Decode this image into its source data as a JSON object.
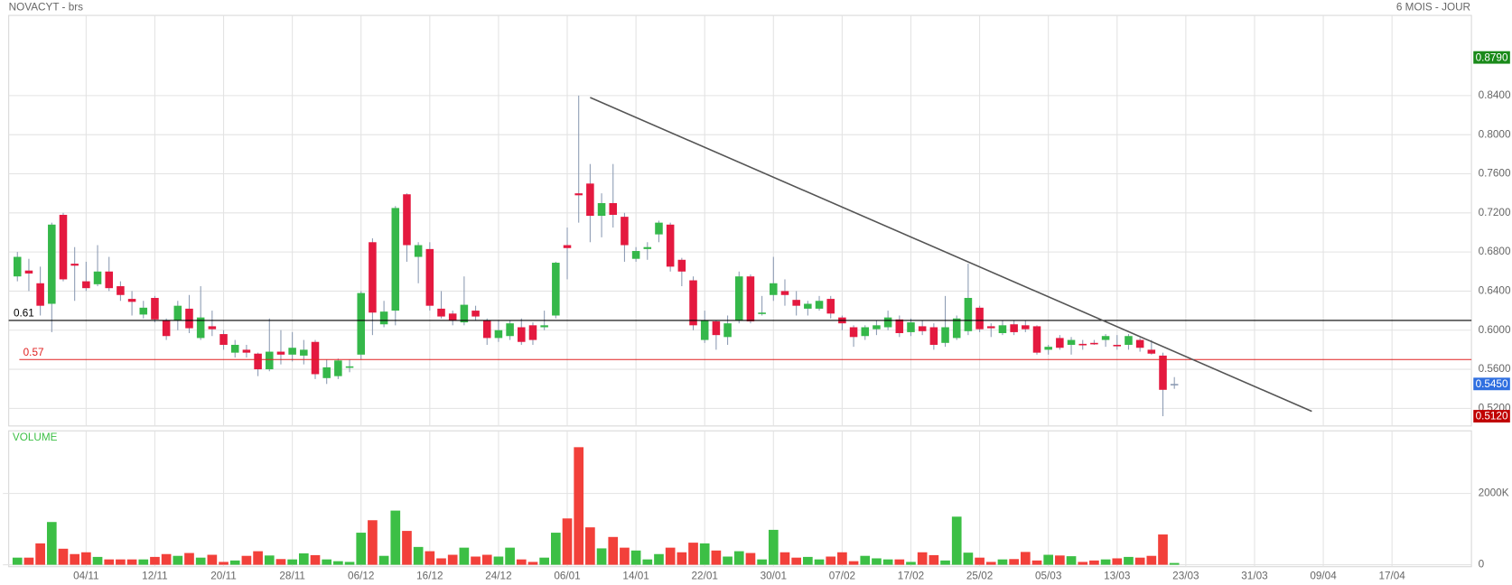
{
  "chart_data": {
    "type": "candlestick",
    "title": "NOVACYT - brs",
    "subtitle": "6 MOIS - JOUR",
    "volume_label": "VOLUME",
    "categories": [
      null,
      null,
      null,
      null,
      null,
      null,
      "04/11",
      null,
      null,
      null,
      null,
      null,
      "12/11",
      null,
      null,
      null,
      null,
      null,
      "20/11",
      null,
      null,
      null,
      null,
      null,
      "28/11",
      null,
      null,
      null,
      null,
      null,
      "06/12",
      null,
      null,
      null,
      null,
      null,
      "16/12",
      null,
      null,
      null,
      null,
      null,
      "24/12",
      null,
      null,
      null,
      null,
      null,
      "06/01",
      null,
      null,
      null,
      null,
      null,
      "14/01",
      null,
      null,
      null,
      null,
      null,
      "22/01",
      null,
      null,
      null,
      null,
      null,
      "30/01",
      null,
      null,
      null,
      null,
      null,
      "07/02",
      null,
      null,
      null,
      null,
      null,
      "17/02",
      null,
      null,
      null,
      null,
      null,
      "25/02",
      null,
      null,
      null,
      null,
      null,
      "05/03",
      null,
      null,
      null,
      null,
      null,
      "13/03",
      null,
      null,
      null,
      null,
      null,
      "23/03",
      null,
      null,
      null,
      null,
      null,
      "31/03",
      null,
      null,
      null,
      null,
      null,
      "09/04",
      null,
      null,
      null,
      null,
      null,
      "17/04"
    ],
    "open": [
      0.655,
      0.661,
      0.648,
      0.627,
      0.718,
      0.668,
      0.65,
      0.647,
      0.66,
      0.645,
      0.632,
      0.616,
      0.633,
      0.61,
      0.61,
      0.622,
      0.592,
      0.604,
      0.596,
      0.577,
      0.58,
      0.576,
      0.56,
      0.578,
      0.575,
      0.574,
      0.588,
      0.551,
      0.553,
      0.562,
      0.575,
      0.69,
      0.606,
      0.62,
      0.739,
      0.675,
      0.683,
      0.622,
      0.617,
      0.608,
      0.62,
      0.61,
      0.592,
      0.594,
      0.603,
      0.605,
      0.603,
      0.615,
      0.687,
      0.74,
      0.75,
      0.717,
      0.73,
      0.716,
      0.673,
      0.683,
      0.698,
      0.708,
      0.672,
      0.651,
      0.59,
      0.609,
      0.593,
      0.61,
      0.655,
      0.617,
      0.636,
      0.64,
      0.631,
      0.622,
      0.622,
      0.632,
      0.613,
      0.603,
      0.594,
      0.601,
      0.603,
      0.611,
      0.598,
      0.604,
      0.603,
      0.587,
      0.592,
      0.599,
      0.623,
      0.604,
      0.597,
      0.606,
      0.605,
      0.604,
      0.58,
      0.592,
      0.585,
      0.586,
      0.587,
      0.59,
      0.585,
      0.585,
      0.59,
      0.58,
      0.574,
      0.545,
      null,
      null,
      null,
      null,
      null,
      null,
      null,
      null,
      null,
      null,
      null,
      null,
      null,
      null,
      null,
      null,
      null,
      null,
      null
    ],
    "high": [
      0.68,
      0.673,
      0.665,
      0.71,
      0.72,
      0.685,
      0.67,
      0.687,
      0.675,
      0.65,
      0.64,
      0.63,
      0.635,
      0.612,
      0.63,
      0.636,
      0.645,
      0.62,
      0.6,
      0.59,
      0.585,
      0.577,
      0.612,
      0.6,
      0.598,
      0.59,
      0.59,
      0.57,
      0.571,
      0.57,
      0.64,
      0.694,
      0.63,
      0.727,
      0.74,
      0.69,
      0.69,
      0.64,
      0.62,
      0.655,
      0.625,
      0.612,
      0.61,
      0.61,
      0.612,
      0.608,
      0.62,
      0.67,
      0.705,
      0.84,
      0.77,
      0.74,
      0.77,
      0.72,
      0.685,
      0.69,
      0.712,
      0.71,
      0.674,
      0.655,
      0.62,
      0.61,
      0.615,
      0.66,
      0.657,
      0.635,
      0.675,
      0.652,
      0.64,
      0.63,
      0.635,
      0.635,
      0.615,
      0.605,
      0.605,
      0.61,
      0.62,
      0.615,
      0.612,
      0.61,
      0.607,
      0.635,
      0.615,
      0.668,
      0.625,
      0.607,
      0.61,
      0.61,
      0.61,
      0.605,
      0.585,
      0.595,
      0.593,
      0.59,
      0.59,
      0.596,
      0.595,
      0.596,
      0.592,
      0.59,
      0.577,
      0.552,
      null,
      null,
      null,
      null,
      null,
      null,
      null,
      null,
      null,
      null,
      null,
      null,
      null,
      null,
      null,
      null,
      null,
      null,
      null
    ],
    "low": [
      0.65,
      0.64,
      0.615,
      0.598,
      0.65,
      0.63,
      0.64,
      0.645,
      0.64,
      0.63,
      0.615,
      0.612,
      0.608,
      0.59,
      0.6,
      0.597,
      0.59,
      0.594,
      0.58,
      0.572,
      0.572,
      0.553,
      0.558,
      0.565,
      0.568,
      0.565,
      0.55,
      0.545,
      0.55,
      0.557,
      0.57,
      0.595,
      0.603,
      0.605,
      0.67,
      0.648,
      0.62,
      0.612,
      0.605,
      0.605,
      0.61,
      0.585,
      0.588,
      0.59,
      0.585,
      0.585,
      0.6,
      0.612,
      0.652,
      0.71,
      0.69,
      0.695,
      0.705,
      0.67,
      0.67,
      0.672,
      0.69,
      0.66,
      0.645,
      0.6,
      0.587,
      0.58,
      0.585,
      0.607,
      0.607,
      0.615,
      0.63,
      0.625,
      0.615,
      0.615,
      0.62,
      0.612,
      0.6,
      0.583,
      0.59,
      0.595,
      0.6,
      0.593,
      0.594,
      0.595,
      0.58,
      0.583,
      0.59,
      0.595,
      0.598,
      0.593,
      0.595,
      0.595,
      0.598,
      0.575,
      0.575,
      0.58,
      0.575,
      0.58,
      0.585,
      0.583,
      0.58,
      0.58,
      0.578,
      0.575,
      0.512,
      0.54,
      null,
      null,
      null,
      null,
      null,
      null,
      null,
      null,
      null,
      null,
      null,
      null,
      null,
      null,
      null,
      null,
      null,
      null,
      null
    ],
    "close": [
      0.675,
      0.658,
      0.625,
      0.708,
      0.652,
      0.666,
      0.643,
      0.66,
      0.643,
      0.636,
      0.629,
      0.623,
      0.611,
      0.594,
      0.625,
      0.602,
      0.613,
      0.601,
      0.585,
      0.585,
      0.577,
      0.56,
      0.578,
      0.575,
      0.582,
      0.58,
      0.555,
      0.562,
      0.569,
      0.563,
      0.638,
      0.618,
      0.619,
      0.725,
      0.687,
      0.687,
      0.625,
      0.614,
      0.61,
      0.626,
      0.614,
      0.592,
      0.6,
      0.607,
      0.588,
      0.59,
      0.605,
      0.669,
      0.684,
      0.738,
      0.717,
      0.73,
      0.718,
      0.687,
      0.681,
      0.685,
      0.71,
      0.665,
      0.66,
      0.605,
      0.61,
      0.595,
      0.607,
      0.655,
      0.609,
      0.618,
      0.648,
      0.636,
      0.625,
      0.627,
      0.63,
      0.617,
      0.607,
      0.593,
      0.603,
      0.605,
      0.613,
      0.597,
      0.608,
      0.599,
      0.585,
      0.603,
      0.612,
      0.633,
      0.601,
      0.602,
      0.605,
      0.598,
      0.601,
      0.577,
      0.583,
      0.582,
      0.59,
      0.585,
      0.586,
      0.594,
      0.584,
      0.594,
      0.582,
      0.576,
      0.539,
      0.545,
      null,
      null,
      null,
      null,
      null,
      null,
      null,
      null,
      null,
      null,
      null,
      null,
      null,
      null,
      null,
      null,
      null,
      null,
      null
    ],
    "volume": [
      200000,
      200000,
      600000,
      1200000,
      450000,
      300000,
      350000,
      220000,
      150000,
      150000,
      150000,
      150000,
      220000,
      300000,
      250000,
      330000,
      200000,
      280000,
      80000,
      120000,
      250000,
      380000,
      260000,
      160000,
      150000,
      320000,
      270000,
      150000,
      100000,
      80000,
      900000,
      1250000,
      250000,
      1520000,
      950000,
      500000,
      380000,
      180000,
      280000,
      480000,
      230000,
      280000,
      230000,
      480000,
      150000,
      80000,
      200000,
      900000,
      1300000,
      3300000,
      1050000,
      460000,
      780000,
      480000,
      400000,
      150000,
      300000,
      480000,
      350000,
      620000,
      600000,
      400000,
      230000,
      380000,
      330000,
      150000,
      980000,
      350000,
      200000,
      220000,
      150000,
      230000,
      350000,
      100000,
      250000,
      180000,
      150000,
      150000,
      80000,
      350000,
      270000,
      120000,
      1350000,
      340000,
      200000,
      80000,
      150000,
      160000,
      360000,
      120000,
      280000,
      260000,
      240000,
      80000,
      120000,
      150000,
      180000,
      220000,
      200000,
      250000,
      850000,
      50000,
      null,
      null,
      null,
      null,
      null,
      null,
      null,
      null,
      null,
      null,
      null,
      null,
      null,
      null,
      null,
      null,
      null,
      null,
      null
    ],
    "ylim": [
      0.502,
      0.922
    ],
    "yticks": [
      {
        "value": 0.52,
        "label": "0.5200"
      },
      {
        "value": 0.56,
        "label": "0.5600"
      },
      {
        "value": 0.6,
        "label": "0.6000"
      },
      {
        "value": 0.64,
        "label": "0.6400"
      },
      {
        "value": 0.68,
        "label": "0.6800"
      },
      {
        "value": 0.72,
        "label": "0.7200"
      },
      {
        "value": 0.76,
        "label": "0.7600"
      },
      {
        "value": 0.8,
        "label": "0.8000"
      },
      {
        "value": 0.84,
        "label": "0.8400"
      }
    ],
    "volume_ylim": [
      0,
      3760000
    ],
    "volume_yticks": [
      0,
      {
        "value": 2000000,
        "label": "2000K"
      }
    ],
    "grid": true,
    "up_color": "#35b84a",
    "down_color": "#e4193f",
    "volume_up_color": "#3cbf45",
    "volume_down_color": "#f2403a",
    "wick_color": "#8c9bb3",
    "levels": [
      {
        "value": 0.61,
        "label": "0.61",
        "color": "#000000"
      },
      {
        "value": 0.57,
        "label": "0.57",
        "color": "#e02020"
      }
    ],
    "price_markers": [
      {
        "value": 0.879,
        "label": "0.8790",
        "color": "#1a8a1a"
      },
      {
        "value": 0.545,
        "label": "0.5450",
        "color": "#2f6fe0"
      },
      {
        "value": 0.512,
        "label": "0.5120",
        "color": "#c00000"
      }
    ],
    "trendline": {
      "x": [
        50,
        113
      ],
      "y": [
        0.838,
        0.517
      ],
      "color": "#555555"
    }
  }
}
